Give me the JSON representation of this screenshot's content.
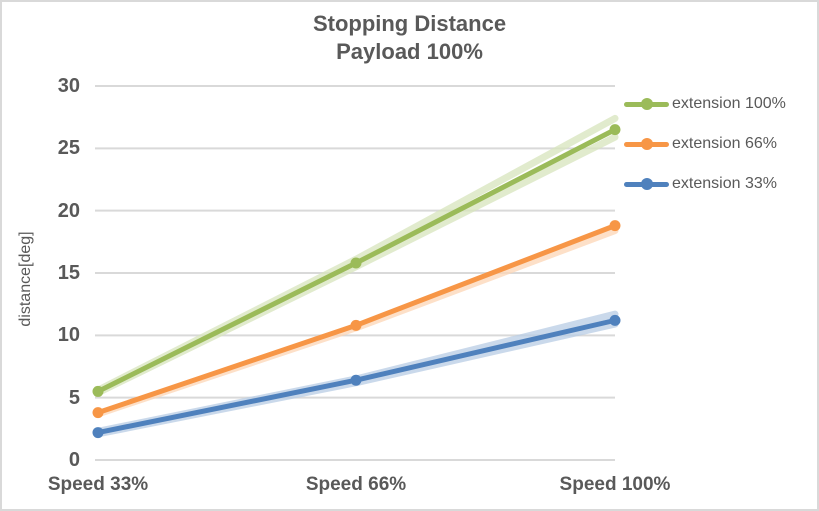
{
  "chart_data": {
    "type": "line",
    "title": "Stopping Distance",
    "subtitle": "Payload 100%",
    "categories": [
      "Speed 33%",
      "Speed 66%",
      "Speed 100%"
    ],
    "series": [
      {
        "name": "extension 100%",
        "color": "#9BBB59",
        "values": [
          5.5,
          15.8,
          26.5
        ]
      },
      {
        "name": "extension 66%",
        "color": "#F79646",
        "values": [
          3.8,
          10.8,
          18.8
        ]
      },
      {
        "name": "extension 33%",
        "color": "#4F81BD",
        "values": [
          2.2,
          6.4,
          11.2
        ]
      }
    ],
    "trial_series": [
      {
        "parent": "extension 100%",
        "color": "#D7E4BC",
        "values": [
          5.6,
          16.1,
          27.4
        ]
      },
      {
        "parent": "extension 100%",
        "color": "#D7E4BC",
        "values": [
          5.4,
          15.5,
          25.9
        ]
      },
      {
        "parent": "extension 66%",
        "color": "#FCD5B5",
        "values": [
          3.7,
          10.6,
          18.4
        ]
      },
      {
        "parent": "extension 33%",
        "color": "#B8CCE4",
        "values": [
          2.3,
          6.5,
          11.7
        ]
      },
      {
        "parent": "extension 33%",
        "color": "#B8CCE4",
        "values": [
          2.1,
          6.2,
          10.9
        ]
      }
    ],
    "xlabel": "",
    "ylabel": "distance[deg]",
    "ylim": [
      0,
      30
    ],
    "yticks": [
      0,
      5,
      10,
      15,
      20,
      25,
      30
    ],
    "grid": true,
    "legend_position": "right",
    "colors": {
      "text": "#595959",
      "gridline": "#D9D9D9",
      "border": "#D9D9D9",
      "background": "#FFFFFF"
    }
  }
}
